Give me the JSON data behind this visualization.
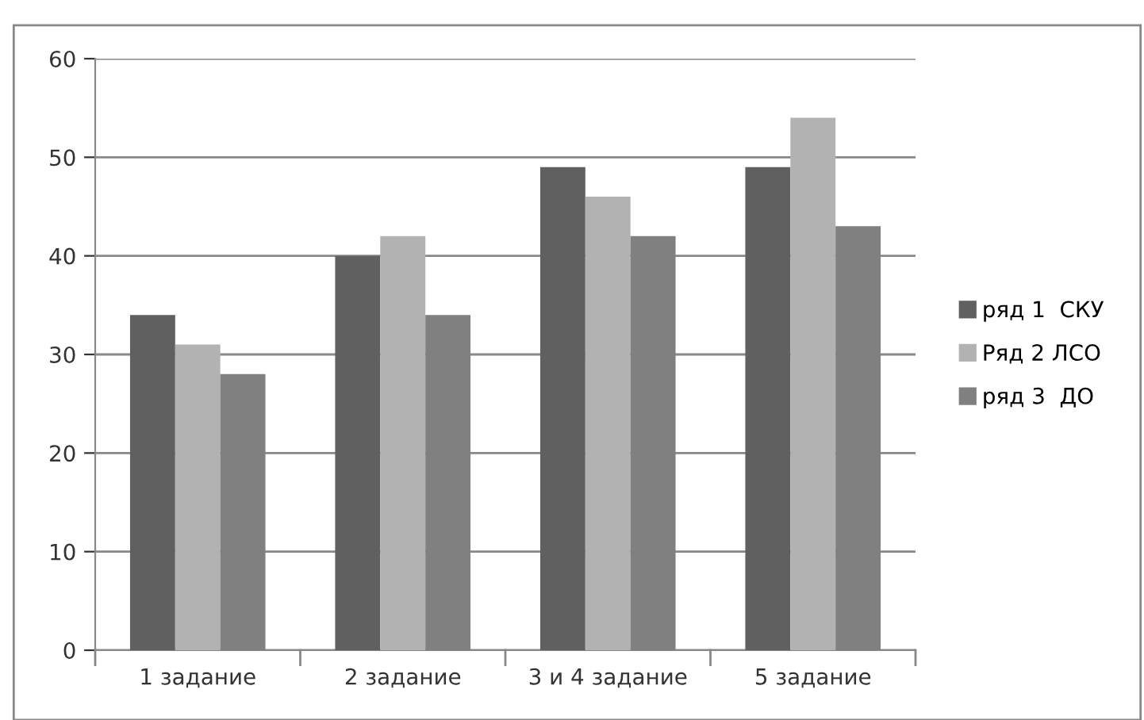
{
  "chart_data": {
    "type": "bar",
    "categories": [
      "1 задание",
      "2 задание",
      "3 и 4 задание",
      "5 задание"
    ],
    "series": [
      {
        "name": "ряд 1  СКУ",
        "color": "#606060",
        "values": [
          34,
          40,
          49,
          49
        ]
      },
      {
        "name": "Ряд 2 ЛСО",
        "color": "#b2b2b2",
        "values": [
          31,
          42,
          46,
          54
        ]
      },
      {
        "name": "ряд 3  ДО",
        "color": "#808080",
        "values": [
          28,
          34,
          42,
          43
        ]
      }
    ],
    "ylim": [
      0,
      60
    ],
    "yticks": [
      0,
      10,
      20,
      30,
      40,
      50,
      60
    ],
    "grid": "y",
    "legend": "right"
  }
}
